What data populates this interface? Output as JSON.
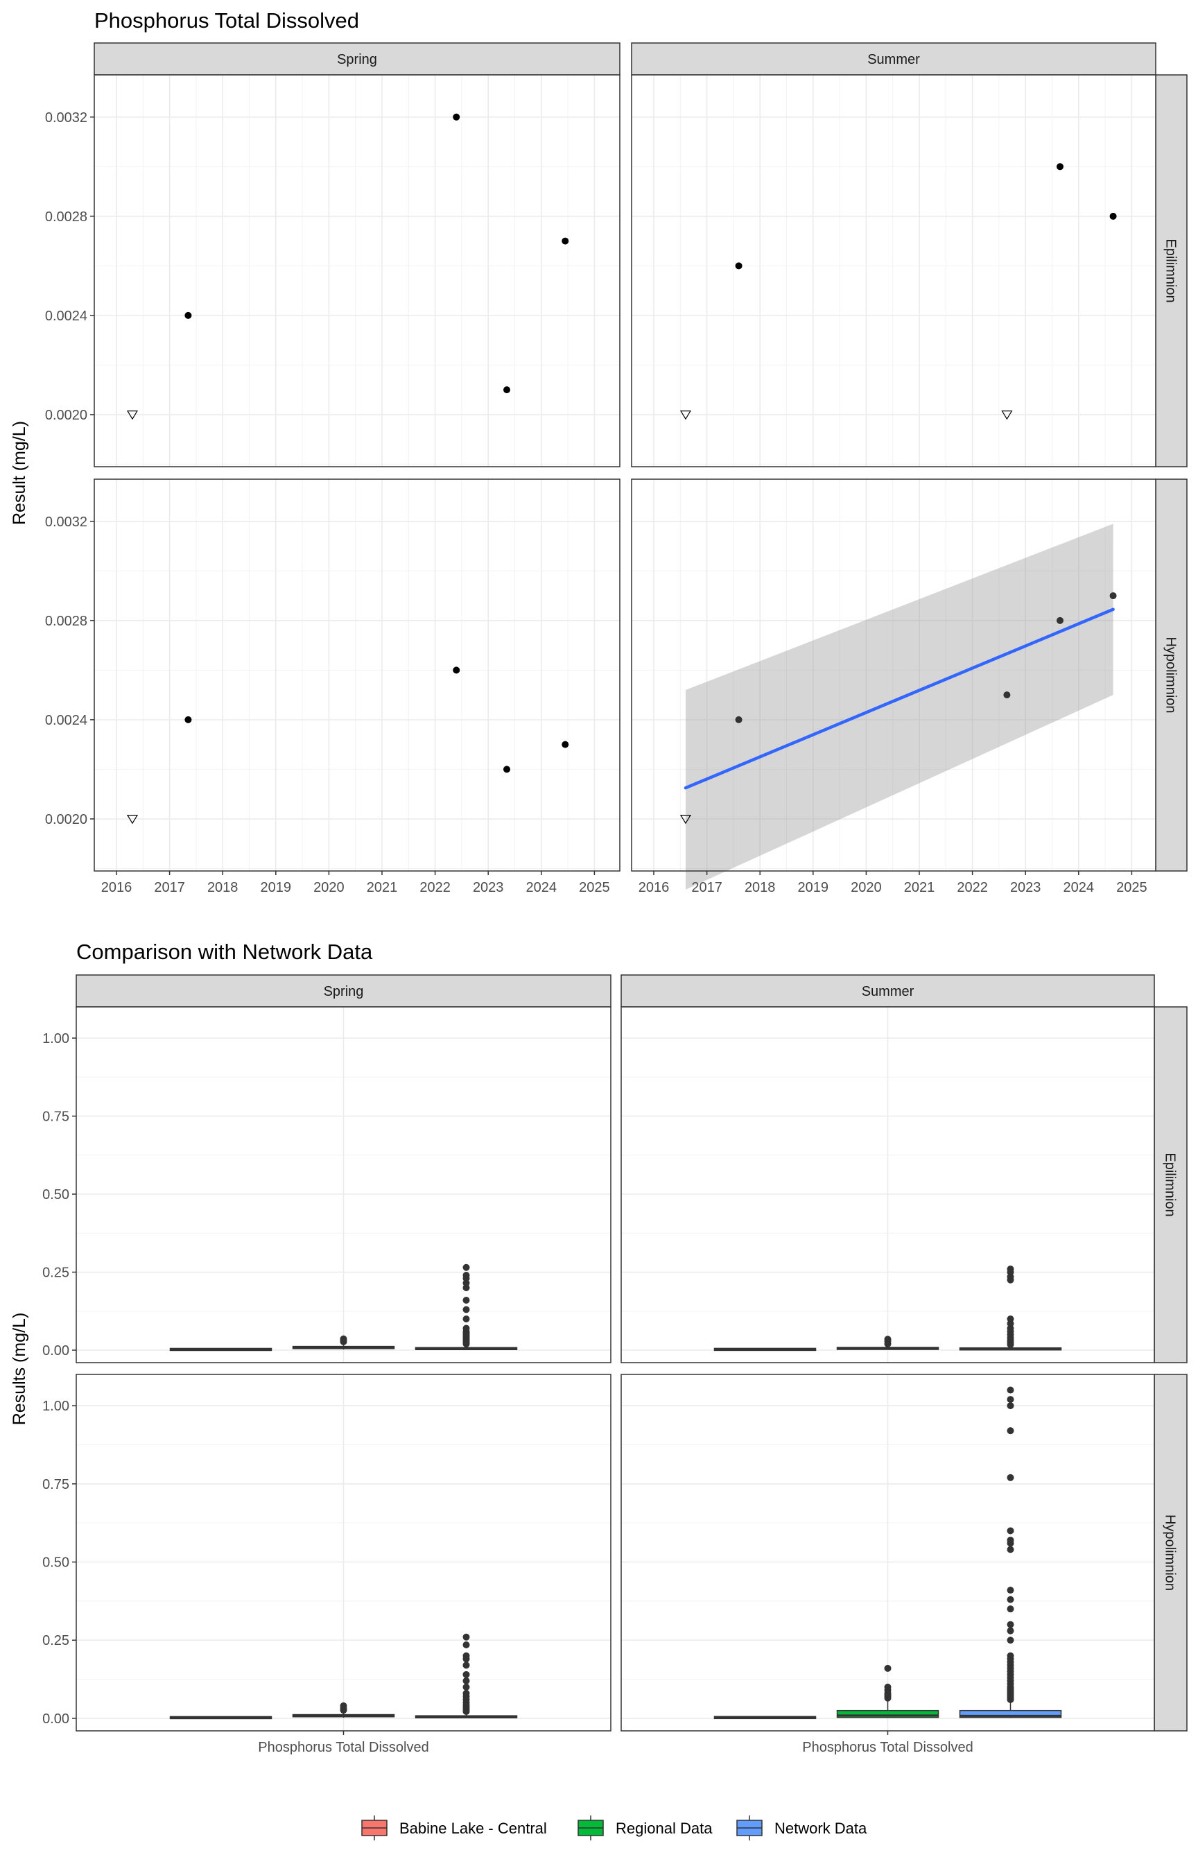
{
  "chart_data": [
    {
      "type": "scatter",
      "title": "Phosphorus Total Dissolved",
      "ylabel": "Result (mg/L)",
      "xlabel": "",
      "facet_cols": [
        "Spring",
        "Summer"
      ],
      "facet_rows": [
        "Epilimnion",
        "Hypolimnion"
      ],
      "x_ticks": [
        "2016",
        "2017",
        "2018",
        "2019",
        "2020",
        "2021",
        "2022",
        "2023",
        "2024",
        "2025"
      ],
      "y_ticks": [
        "0.0020",
        "0.0024",
        "0.0028",
        "0.0032"
      ],
      "ylim": [
        0.00179,
        0.00337
      ],
      "grid": true,
      "panels": [
        {
          "col": "Spring",
          "row": "Epilimnion",
          "points": [
            {
              "x": 2017.35,
              "y": 0.0024,
              "detected": true
            },
            {
              "x": 2022.4,
              "y": 0.0032,
              "detected": true
            },
            {
              "x": 2023.35,
              "y": 0.0021,
              "detected": true
            },
            {
              "x": 2024.45,
              "y": 0.0027,
              "detected": true
            },
            {
              "x": 2016.3,
              "y": 0.002,
              "detected": false
            }
          ]
        },
        {
          "col": "Summer",
          "row": "Epilimnion",
          "points": [
            {
              "x": 2017.6,
              "y": 0.0026,
              "detected": true
            },
            {
              "x": 2023.65,
              "y": 0.003,
              "detected": true
            },
            {
              "x": 2024.65,
              "y": 0.0028,
              "detected": true
            },
            {
              "x": 2016.6,
              "y": 0.002,
              "detected": false
            },
            {
              "x": 2022.65,
              "y": 0.002,
              "detected": false
            }
          ]
        },
        {
          "col": "Spring",
          "row": "Hypolimnion",
          "points": [
            {
              "x": 2017.35,
              "y": 0.0024,
              "detected": true
            },
            {
              "x": 2022.4,
              "y": 0.0026,
              "detected": true
            },
            {
              "x": 2023.35,
              "y": 0.0022,
              "detected": true
            },
            {
              "x": 2024.45,
              "y": 0.0023,
              "detected": true
            },
            {
              "x": 2016.3,
              "y": 0.002,
              "detected": false
            }
          ]
        },
        {
          "col": "Summer",
          "row": "Hypolimnion",
          "points": [
            {
              "x": 2017.6,
              "y": 0.0024,
              "detected": true
            },
            {
              "x": 2022.65,
              "y": 0.0025,
              "detected": true
            },
            {
              "x": 2023.65,
              "y": 0.0028,
              "detected": true
            },
            {
              "x": 2024.65,
              "y": 0.0029,
              "detected": true
            },
            {
              "x": 2016.6,
              "y": 0.002,
              "detected": false
            }
          ],
          "trend": {
            "x": [
              2016.6,
              2024.65
            ],
            "fit": [
              0.002125,
              0.002845
            ],
            "lower": [
              0.001715,
              0.0025
            ],
            "upper": [
              0.00252,
              0.00319
            ],
            "line_color": "#3366FF",
            "band_color": "#999999"
          }
        }
      ]
    },
    {
      "type": "box",
      "title": "Comparison with Network Data",
      "ylabel": "Results (mg/L)",
      "xlabel": "",
      "categories": [
        "Phosphorus Total Dissolved"
      ],
      "facet_cols": [
        "Spring",
        "Summer"
      ],
      "facet_rows": [
        "Epilimnion",
        "Hypolimnion"
      ],
      "y_ticks": [
        "0.00",
        "0.25",
        "0.50",
        "0.75",
        "1.00"
      ],
      "ylim": [
        -0.04,
        1.1
      ],
      "grid": true,
      "legend_position": "bottom",
      "legend": [
        {
          "name": "Babine Lake - Central",
          "color": "#F8766D"
        },
        {
          "name": "Regional Data",
          "color": "#00BA38"
        },
        {
          "name": "Network Data",
          "color": "#619CFF"
        }
      ],
      "panels": [
        {
          "col": "Spring",
          "row": "Epilimnion",
          "boxes": [
            {
              "group": "Babine Lake - Central",
              "q1": 0.002,
              "median": 0.0022,
              "q3": 0.0026,
              "whisker_low": 0.002,
              "whisker_high": 0.0032,
              "outliers": []
            },
            {
              "group": "Regional Data",
              "q1": 0.005,
              "median": 0.008,
              "q3": 0.012,
              "whisker_low": 0.002,
              "whisker_high": 0.016,
              "outliers": [
                0.027,
                0.032,
                0.036
              ]
            },
            {
              "group": "Network Data",
              "q1": 0.002,
              "median": 0.004,
              "q3": 0.008,
              "whisker_low": 0.001,
              "whisker_high": 0.016,
              "outliers": [
                0.02,
                0.025,
                0.03,
                0.035,
                0.04,
                0.045,
                0.05,
                0.055,
                0.06,
                0.07,
                0.1,
                0.13,
                0.16,
                0.2,
                0.215,
                0.23,
                0.24,
                0.265
              ]
            }
          ]
        },
        {
          "col": "Summer",
          "row": "Epilimnion",
          "boxes": [
            {
              "group": "Babine Lake - Central",
              "q1": 0.002,
              "median": 0.0026,
              "q3": 0.0029,
              "whisker_low": 0.002,
              "whisker_high": 0.003,
              "outliers": []
            },
            {
              "group": "Regional Data",
              "q1": 0.003,
              "median": 0.005,
              "q3": 0.008,
              "whisker_low": 0.001,
              "whisker_high": 0.012,
              "outliers": [
                0.02,
                0.028,
                0.035
              ]
            },
            {
              "group": "Network Data",
              "q1": 0.002,
              "median": 0.003,
              "q3": 0.006,
              "whisker_low": 0.001,
              "whisker_high": 0.012,
              "outliers": [
                0.018,
                0.025,
                0.032,
                0.04,
                0.05,
                0.06,
                0.07,
                0.085,
                0.1,
                0.225,
                0.235,
                0.25,
                0.26
              ]
            }
          ]
        },
        {
          "col": "Spring",
          "row": "Hypolimnion",
          "boxes": [
            {
              "group": "Babine Lake - Central",
              "q1": 0.0021,
              "median": 0.0023,
              "q3": 0.0025,
              "whisker_low": 0.002,
              "whisker_high": 0.0026,
              "outliers": []
            },
            {
              "group": "Regional Data",
              "q1": 0.005,
              "median": 0.008,
              "q3": 0.012,
              "whisker_low": 0.002,
              "whisker_high": 0.018,
              "outliers": [
                0.026,
                0.032,
                0.04
              ]
            },
            {
              "group": "Network Data",
              "q1": 0.002,
              "median": 0.004,
              "q3": 0.008,
              "whisker_low": 0.001,
              "whisker_high": 0.018,
              "outliers": [
                0.022,
                0.028,
                0.035,
                0.042,
                0.05,
                0.06,
                0.07,
                0.08,
                0.1,
                0.12,
                0.14,
                0.17,
                0.19,
                0.2,
                0.235,
                0.26
              ]
            }
          ]
        },
        {
          "col": "Summer",
          "row": "Hypolimnion",
          "boxes": [
            {
              "group": "Babine Lake - Central",
              "q1": 0.0023,
              "median": 0.0025,
              "q3": 0.0028,
              "whisker_low": 0.002,
              "whisker_high": 0.0029,
              "outliers": []
            },
            {
              "group": "Regional Data",
              "q1": 0.003,
              "median": 0.009,
              "q3": 0.025,
              "whisker_low": 0.001,
              "whisker_high": 0.055,
              "outliers": [
                0.065,
                0.07,
                0.075,
                0.08,
                0.09,
                0.1,
                0.16
              ]
            },
            {
              "group": "Network Data",
              "q1": 0.003,
              "median": 0.008,
              "q3": 0.025,
              "whisker_low": 0.001,
              "whisker_high": 0.055,
              "outliers": [
                0.06,
                0.065,
                0.07,
                0.075,
                0.08,
                0.085,
                0.09,
                0.095,
                0.1,
                0.11,
                0.12,
                0.13,
                0.14,
                0.15,
                0.16,
                0.17,
                0.18,
                0.19,
                0.2,
                0.25,
                0.28,
                0.3,
                0.35,
                0.38,
                0.41,
                0.54,
                0.56,
                0.57,
                0.6,
                0.77,
                0.92,
                1.0,
                1.02,
                1.05
              ]
            }
          ]
        }
      ]
    }
  ]
}
